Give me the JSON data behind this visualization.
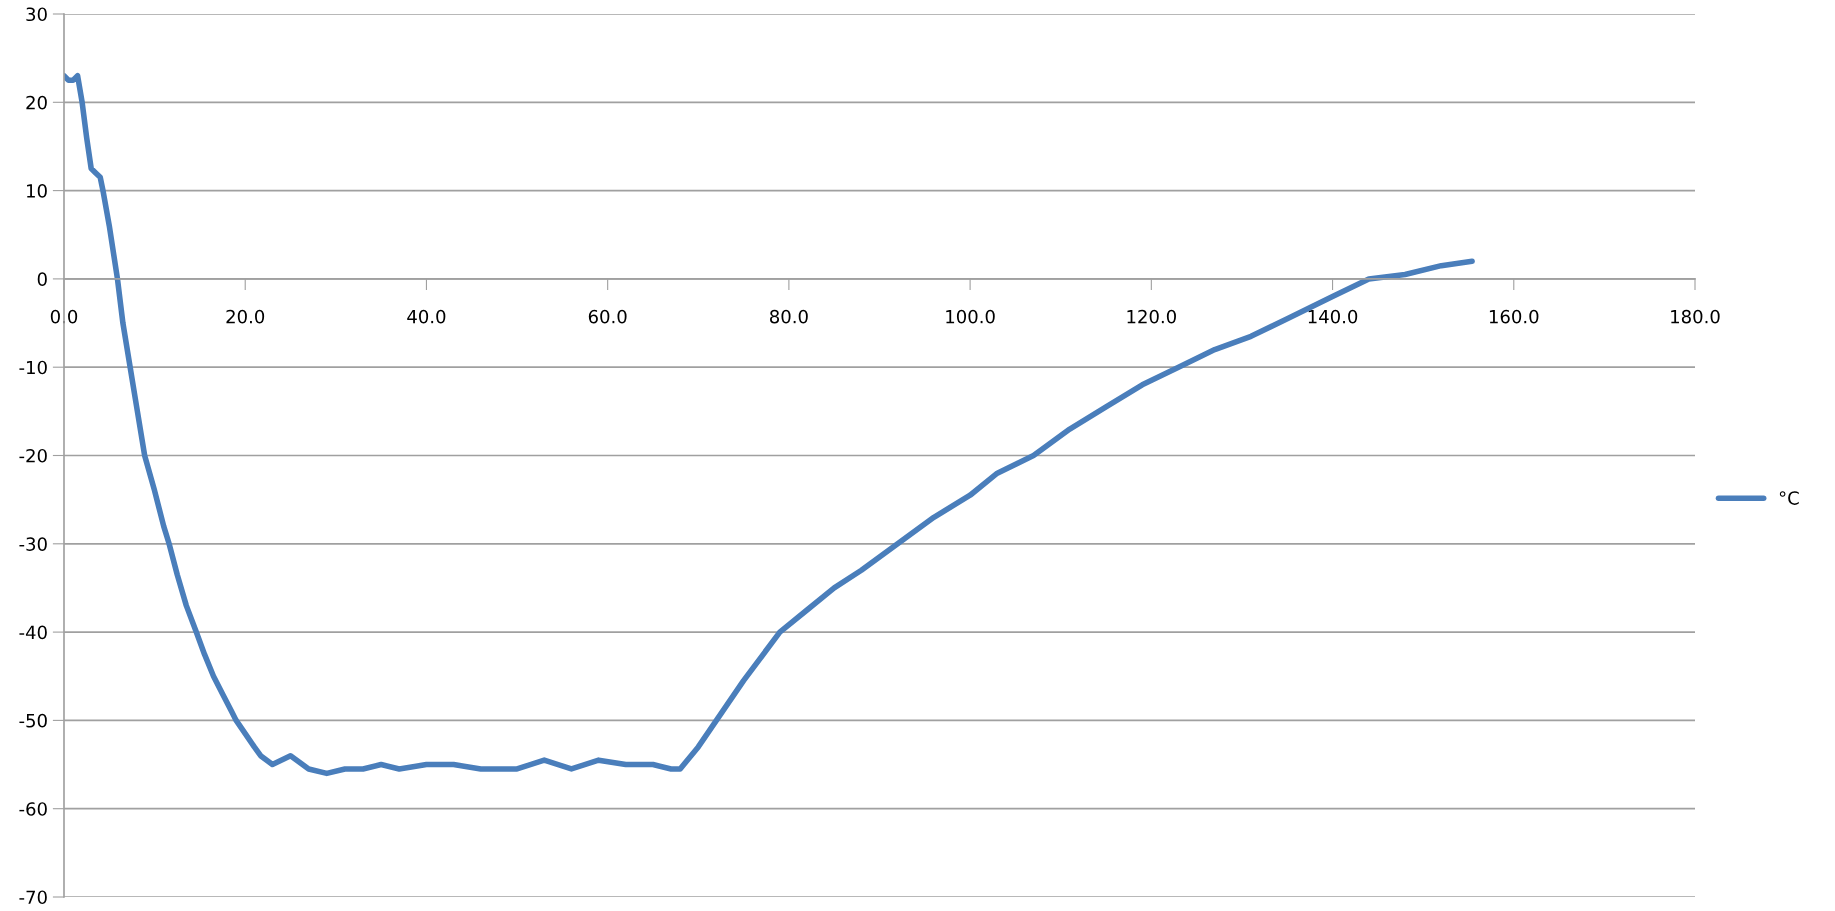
{
  "chart_data": {
    "type": "line",
    "x": [
      0,
      0.5,
      1,
      1.5,
      2,
      2.5,
      3,
      3.5,
      4,
      4.3,
      5,
      5.9,
      6.5,
      7.3,
      8.1,
      8.9,
      10,
      11,
      11.6,
      12.5,
      13.5,
      14.6,
      15.5,
      16.5,
      17.5,
      18.5,
      19,
      20,
      21,
      21.7,
      23,
      25,
      27,
      29,
      31,
      33,
      35,
      37,
      40,
      43,
      46,
      50,
      53,
      56,
      59,
      62,
      65,
      67,
      68,
      70,
      72,
      75,
      79,
      82,
      85,
      88,
      92,
      96,
      100,
      103,
      107,
      111,
      115,
      119,
      123,
      127,
      131,
      135,
      140,
      144,
      148,
      152,
      155.4
    ],
    "series": [
      {
        "name": "°C",
        "color": "#4a7ebb",
        "values": [
          23,
          22.5,
          22.5,
          23,
          20,
          16,
          12.5,
          12,
          11.5,
          10,
          6,
          0,
          -5,
          -10,
          -15,
          -20,
          -24,
          -28,
          -30,
          -33.5,
          -37,
          -40,
          -42.5,
          -45,
          -47,
          -49,
          -50,
          -51.5,
          -53,
          -54,
          -55,
          -54,
          -55.5,
          -56,
          -55.5,
          -55.5,
          -55,
          -55.5,
          -55,
          -55,
          -55.5,
          -55.5,
          -54.5,
          -55.5,
          -54.5,
          -55,
          -55,
          -55.5,
          -55.5,
          -53,
          -50,
          -45.5,
          -40,
          -37.5,
          -35,
          -33,
          -30,
          -27,
          -24.5,
          -22,
          -20,
          -17,
          -14.5,
          -12,
          -10,
          -8,
          -6.5,
          -4.5,
          -2,
          0,
          0.5,
          1.5,
          2
        ]
      }
    ],
    "xlim": [
      0,
      180
    ],
    "xticks": [
      {
        "value": 0,
        "label": "0.0"
      },
      {
        "value": 20,
        "label": "20.0"
      },
      {
        "value": 40,
        "label": "40.0"
      },
      {
        "value": 60,
        "label": "60.0"
      },
      {
        "value": 80,
        "label": "80.0"
      },
      {
        "value": 100,
        "label": "100.0"
      },
      {
        "value": 120,
        "label": "120.0"
      },
      {
        "value": 140,
        "label": "140.0"
      },
      {
        "value": 160,
        "label": "160.0"
      },
      {
        "value": 180,
        "label": "180.0"
      }
    ],
    "ylim": [
      -70,
      30
    ],
    "yticks": [
      -70,
      -60,
      -50,
      -40,
      -30,
      -20,
      -10,
      0,
      10,
      20,
      30
    ],
    "grid": "y",
    "legend": "right",
    "marker": "none",
    "line_style": "solid"
  }
}
